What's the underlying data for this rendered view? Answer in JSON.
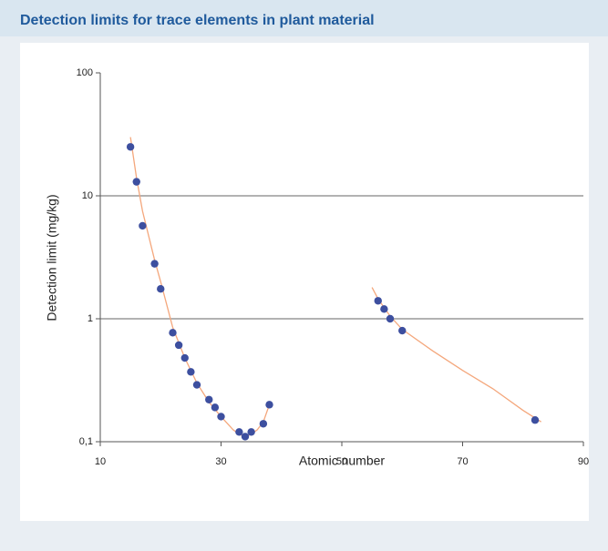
{
  "chart_data": {
    "type": "scatter",
    "title": "Detection limits for trace elements in plant material",
    "x_label": "Atomic number",
    "y_label": "Detection limit (mg/kg)",
    "log_y": true,
    "grid": true,
    "xlim": [
      10,
      90
    ],
    "xticks": [
      10,
      30,
      50,
      70,
      90
    ],
    "ylim": [
      0.1,
      100
    ],
    "yticks": [
      {
        "value": 0.1,
        "label": "0,1"
      },
      1,
      10,
      100
    ],
    "series": [
      {
        "color": "#3d4f9f",
        "x": [
          15,
          16,
          17,
          19,
          20,
          22,
          23,
          24,
          25,
          26,
          28,
          29,
          30,
          33,
          34,
          35,
          37,
          38,
          56,
          57,
          58,
          60,
          82
        ],
        "values": [
          25,
          13,
          5.7,
          2.8,
          1.75,
          0.77,
          0.61,
          0.48,
          0.37,
          0.29,
          0.22,
          0.19,
          0.16,
          0.12,
          0.11,
          0.12,
          0.14,
          0.2,
          1.4,
          1.2,
          1.0,
          0.8,
          0.15
        ]
      }
    ],
    "curves": [
      {
        "color": "#f4a77c",
        "x": [
          15,
          16,
          17,
          19,
          20,
          22,
          24,
          26,
          28,
          30,
          32,
          33,
          34,
          35,
          36,
          37,
          38
        ],
        "values": [
          30,
          14,
          7.5,
          3.0,
          2.0,
          0.85,
          0.48,
          0.3,
          0.21,
          0.16,
          0.125,
          0.115,
          0.11,
          0.115,
          0.125,
          0.145,
          0.2
        ]
      },
      {
        "color": "#f4a77c",
        "x": [
          55,
          56,
          58,
          60,
          65,
          70,
          75,
          80,
          83
        ],
        "values": [
          1.8,
          1.45,
          1.05,
          0.82,
          0.55,
          0.38,
          0.27,
          0.18,
          0.145
        ]
      }
    ]
  }
}
